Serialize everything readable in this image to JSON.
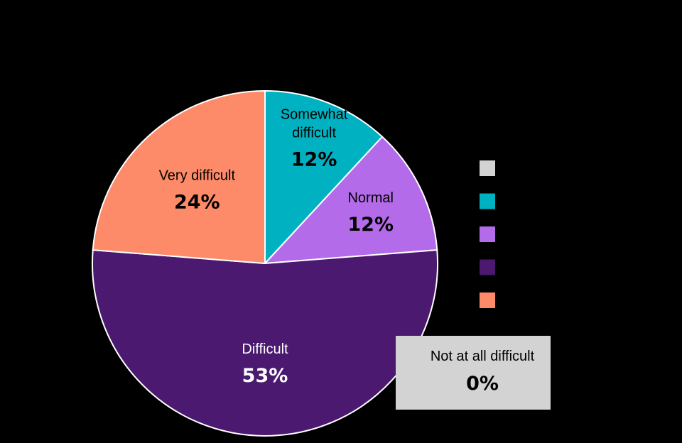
{
  "chart_data": {
    "type": "pie",
    "title": "",
    "legend_position": "right",
    "slices": [
      {
        "label": "Not at all difficult",
        "value": 0,
        "display": "0%",
        "color": "#d3d3d3",
        "text_color": "#000000"
      },
      {
        "label": "Somewhat difficult",
        "value": 12,
        "display": "12%",
        "color": "#00b1c1",
        "text_color": "#000000"
      },
      {
        "label": "Normal",
        "value": 12,
        "display": "12%",
        "color": "#b46bea",
        "text_color": "#000000"
      },
      {
        "label": "Difficult",
        "value": 53,
        "display": "53%",
        "color": "#4b1970",
        "text_color": "#ffffff"
      },
      {
        "label": "Very difficult",
        "value": 24,
        "display": "24%",
        "color": "#fd8a69",
        "text_color": "#000000"
      }
    ]
  }
}
